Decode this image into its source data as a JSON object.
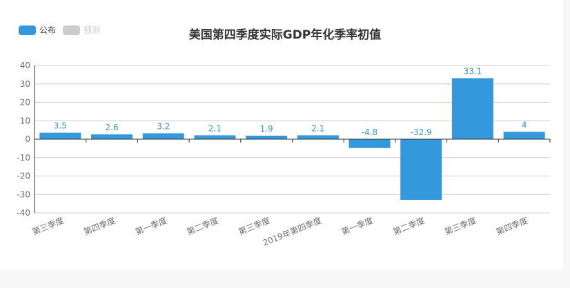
{
  "colors": {
    "published": "#3499dc",
    "forecast": "#cccccc",
    "legend_active_text": "#333333",
    "legend_inactive_text": "#cccccc",
    "grid": "#cccccc",
    "axis": "#333333"
  },
  "legend": [
    {
      "label": "公布",
      "color": "#3499dc",
      "active": true
    },
    {
      "label": "预测",
      "color": "#cccccc",
      "active": false
    }
  ],
  "chart_data": {
    "type": "bar",
    "title": "美国第四季度实际GDP年化季率初值",
    "categories": [
      "第三季度",
      "第四季度",
      "第一季度",
      "第二季度",
      "第三季度",
      "2019年第四季度",
      "第一季度",
      "第二季度",
      "第三季度",
      "第四季度"
    ],
    "series": [
      {
        "name": "公布",
        "values": [
          3.5,
          2.6,
          3.2,
          2.1,
          1.9,
          2.1,
          -4.8,
          -32.9,
          33.1,
          4
        ]
      }
    ],
    "value_labels": [
      "3.5",
      "2.6",
      "3.2",
      "2.1",
      "1.9",
      "2.1",
      "-4.8",
      "-32.9",
      "33.1",
      "4"
    ],
    "ylim": [
      -40,
      40
    ],
    "yticks": [
      40,
      30,
      20,
      10,
      0,
      -10,
      -20,
      -30,
      -40
    ],
    "ytick_labels": [
      "40",
      "30",
      "20",
      "10",
      "0",
      "-10",
      "-20",
      "-30",
      "-40"
    ],
    "grid": true,
    "legend_position": "top-left"
  }
}
